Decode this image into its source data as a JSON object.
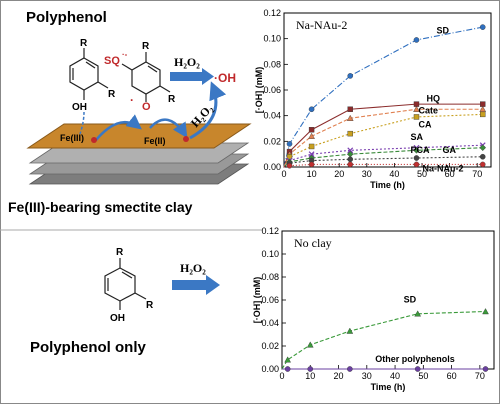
{
  "left_top": {
    "title": "Polyphenol",
    "clay_caption": "Fe(III)-bearing smectite clay",
    "labels": {
      "oh": "OH",
      "r": "R",
      "sq": "SQ",
      "sq_sup": "·-",
      "radical_o": "·",
      "o": "O",
      "h2o2_top": "H₂O₂",
      "oh_radical": "·OH",
      "h2o2_diag": "H₂O₂",
      "fe3": "Fe(III)",
      "fe2": "Fe(II)"
    }
  },
  "left_bottom": {
    "title": "Polyphenol only",
    "labels": {
      "oh": "OH",
      "r": "R",
      "h2o2": "H₂O₂"
    }
  },
  "chart_data": [
    {
      "type": "line",
      "panel_label": "Na-NAu-2",
      "xlabel": "Time (h)",
      "ylabel": "[·OH] (mM)",
      "xlim": [
        0,
        75
      ],
      "ylim": [
        0,
        0.12
      ],
      "xticks": [
        "0",
        "10",
        "20",
        "30",
        "40",
        "50",
        "60",
        "70"
      ],
      "yticks": [
        "0.00",
        "0.02",
        "0.04",
        "0.06",
        "0.08",
        "0.10",
        "0.12"
      ],
      "x": [
        0,
        2,
        10,
        24,
        48,
        72
      ],
      "series": [
        {
          "name": "SD",
          "color": "#2f6fbf",
          "dash": "6,2,1,2",
          "marker": "circle",
          "values": [
            0,
            0.018,
            0.045,
            0.071,
            0.099,
            0.109
          ]
        },
        {
          "name": "HQ",
          "color": "#8b2c2c",
          "dash": "",
          "marker": "square",
          "values": [
            0,
            0.012,
            0.029,
            0.045,
            0.049,
            0.049
          ]
        },
        {
          "name": "Cate",
          "color": "#e08050",
          "dash": "4,2",
          "marker": "triangle",
          "values": [
            0,
            0.01,
            0.024,
            0.038,
            0.045,
            0.045
          ]
        },
        {
          "name": "CA",
          "color": "#c8a020",
          "dash": "2,2",
          "marker": "square",
          "values": [
            0,
            0.008,
            0.016,
            0.026,
            0.039,
            0.041
          ]
        },
        {
          "name": "SA",
          "color": "#7a3fb0",
          "dash": "2,2",
          "marker": "x",
          "values": [
            0,
            0.005,
            0.01,
            0.013,
            0.015,
            0.017
          ]
        },
        {
          "name": "PCA",
          "color": "#3a8a3a",
          "dash": "4,2",
          "marker": "diamond",
          "values": [
            0,
            0.004,
            0.007,
            0.01,
            0.013,
            0.015
          ]
        },
        {
          "name": "GA",
          "color": "#444444",
          "dash": "2,2",
          "marker": "circle",
          "values": [
            0,
            0.003,
            0.005,
            0.006,
            0.007,
            0.008
          ]
        },
        {
          "name": "Na-NAu-2",
          "color": "#c03030",
          "dash": "1,2",
          "marker": "circle",
          "values": [
            0,
            0.001,
            0.002,
            0.002,
            0.002,
            0.002
          ]
        }
      ]
    },
    {
      "type": "line",
      "panel_label": "No clay",
      "xlabel": "Time (h)",
      "ylabel": "[·OH] (mM)",
      "xlim": [
        0,
        75
      ],
      "ylim": [
        0,
        0.12
      ],
      "xticks": [
        "0",
        "10",
        "20",
        "30",
        "40",
        "50",
        "60",
        "70"
      ],
      "yticks": [
        "0.00",
        "0.02",
        "0.04",
        "0.06",
        "0.08",
        "0.10",
        "0.12"
      ],
      "x": [
        0,
        2,
        10,
        24,
        48,
        72
      ],
      "series": [
        {
          "name": "SD",
          "color": "#3a9a3a",
          "dash": "4,2",
          "marker": "triangle",
          "values": [
            0,
            0.008,
            0.021,
            0.033,
            0.048,
            0.05
          ]
        },
        {
          "name": "Other polyphenols",
          "color": "#6a3fa0",
          "dash": "",
          "marker": "circle",
          "values": [
            0,
            0,
            0,
            0,
            0,
            0
          ]
        }
      ]
    }
  ]
}
